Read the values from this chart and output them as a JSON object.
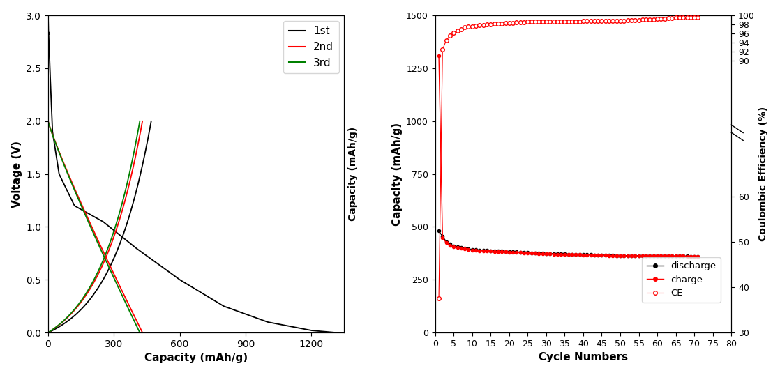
{
  "left_plot": {
    "xlabel": "Capacity (mAh/g)",
    "ylabel": "Voltage (V)",
    "ylabel_right": "Capacity (mAh/g)",
    "xlim": [
      0,
      1350
    ],
    "ylim": [
      0,
      3.0
    ],
    "xticks": [
      0,
      300,
      600,
      900,
      1200
    ],
    "yticks": [
      0.0,
      0.5,
      1.0,
      1.5,
      2.0,
      2.5,
      3.0
    ],
    "legend_labels": [
      "1st",
      "2nd",
      "3rd"
    ],
    "legend_colors": [
      "black",
      "red",
      "green"
    ]
  },
  "right_plot": {
    "xlabel": "Cycle Numbers",
    "ylabel": "Capacity (mAh/g)",
    "ylabel_right": "Coulombic Efficiency (%)",
    "xlim": [
      0,
      80
    ],
    "ylim_left": [
      0,
      1500
    ],
    "ylim_right": [
      30,
      100
    ],
    "xticks": [
      0,
      5,
      10,
      15,
      20,
      25,
      30,
      35,
      40,
      45,
      50,
      55,
      60,
      65,
      70,
      75,
      80
    ],
    "yticks_left": [
      0,
      250,
      500,
      750,
      1000,
      1250,
      1500
    ],
    "yticks_right_lower": [
      30,
      40,
      50,
      60
    ],
    "yticks_right_upper": [
      90,
      92,
      94,
      96,
      98,
      100
    ],
    "legend_labels": [
      "discharge",
      "charge",
      "CE"
    ],
    "legend_colors": [
      "black",
      "red",
      "red"
    ]
  }
}
